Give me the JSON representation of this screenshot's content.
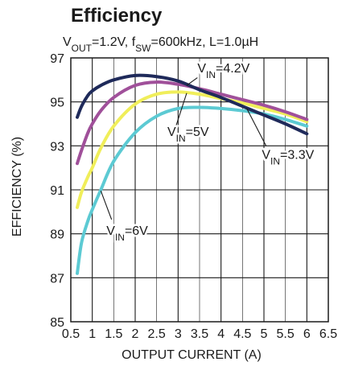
{
  "chart_data": {
    "type": "line",
    "title": "Efficiency",
    "subtitle": {
      "parts": [
        {
          "text": "V",
          "sub": false
        },
        {
          "text": "OUT",
          "sub": true
        },
        {
          "text": "=1.2V, f",
          "sub": false
        },
        {
          "text": "SW",
          "sub": true
        },
        {
          "text": "=600kHz, L=1.0µH",
          "sub": false
        }
      ]
    },
    "xlabel": "OUTPUT CURRENT (A)",
    "ylabel": "EFFICIENCY (%)",
    "xlim": [
      0.5,
      6.5
    ],
    "ylim": [
      85,
      97
    ],
    "xticks": [
      "0.5",
      "1",
      "1.5",
      "2",
      "2.5",
      "3",
      "3.5",
      "4",
      "4.5",
      "5",
      "5.5",
      "6",
      "6.5"
    ],
    "yticks": [
      "85",
      "87",
      "89",
      "91",
      "93",
      "95",
      "97"
    ],
    "grid": true,
    "series": [
      {
        "name": "VIN=3.3V",
        "label_parts": [
          {
            "text": "V",
            "sub": false
          },
          {
            "text": "IN",
            "sub": true
          },
          {
            "text": "=3.3V",
            "sub": false
          }
        ],
        "color": "#1f2a5a",
        "x": [
          0.65,
          0.75,
          0.9,
          1.0,
          1.2,
          1.5,
          2.0,
          2.5,
          3.0,
          3.5,
          4.0,
          4.5,
          5.0,
          5.5,
          6.0
        ],
        "y": [
          94.3,
          94.8,
          95.3,
          95.5,
          95.75,
          96.0,
          96.2,
          96.15,
          95.95,
          95.55,
          95.2,
          94.8,
          94.4,
          94.0,
          93.55
        ]
      },
      {
        "name": "VIN=4.2V",
        "label_parts": [
          {
            "text": "V",
            "sub": false
          },
          {
            "text": "IN",
            "sub": true
          },
          {
            "text": "=4.2V",
            "sub": false
          }
        ],
        "color": "#a0509a",
        "x": [
          0.65,
          0.75,
          0.9,
          1.0,
          1.2,
          1.5,
          2.0,
          2.5,
          3.0,
          3.5,
          4.0,
          4.5,
          5.0,
          5.5,
          6.0
        ],
        "y": [
          92.2,
          92.8,
          93.6,
          94.0,
          94.6,
          95.2,
          95.75,
          95.9,
          95.8,
          95.6,
          95.35,
          95.1,
          94.85,
          94.55,
          94.2
        ]
      },
      {
        "name": "VIN=5V",
        "label_parts": [
          {
            "text": "V",
            "sub": false
          },
          {
            "text": "IN",
            "sub": true
          },
          {
            "text": "=5V",
            "sub": false
          }
        ],
        "color": "#f0ee5a",
        "x": [
          0.65,
          0.75,
          0.9,
          1.0,
          1.2,
          1.5,
          2.0,
          2.5,
          3.0,
          3.5,
          4.0,
          4.5,
          5.0,
          5.5,
          6.0
        ],
        "y": [
          90.2,
          90.9,
          91.6,
          92.0,
          92.9,
          93.9,
          94.9,
          95.35,
          95.45,
          95.35,
          95.15,
          94.95,
          94.7,
          94.45,
          94.1
        ]
      },
      {
        "name": "VIN=6V",
        "label_parts": [
          {
            "text": "V",
            "sub": false
          },
          {
            "text": "IN",
            "sub": true
          },
          {
            "text": "=6V",
            "sub": false
          }
        ],
        "color": "#5ccad3",
        "x": [
          0.65,
          0.75,
          0.9,
          1.0,
          1.2,
          1.5,
          2.0,
          2.5,
          3.0,
          3.5,
          4.0,
          4.5,
          5.0,
          5.5,
          6.0
        ],
        "y": [
          87.2,
          88.6,
          89.6,
          90.1,
          91.0,
          92.3,
          93.6,
          94.35,
          94.7,
          94.75,
          94.7,
          94.6,
          94.45,
          94.2,
          93.9
        ]
      }
    ]
  }
}
